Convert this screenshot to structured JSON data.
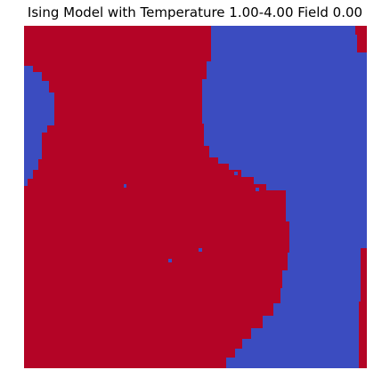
{
  "figure": {
    "title": "Ising Model with Temperature 1.00-4.00 Field 0.00"
  },
  "colors": {
    "spin_up": "#b40426",
    "spin_down": "#3b4cc0",
    "background": "#ffffff"
  }
}
